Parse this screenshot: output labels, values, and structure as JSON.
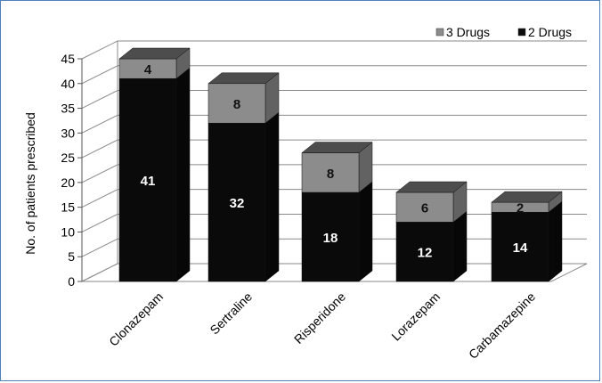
{
  "chart_data": {
    "type": "bar",
    "stacked": true,
    "three_d": true,
    "categories": [
      "Clonazepam",
      "Sertraline",
      "Risperidone",
      "Lorazepam",
      "Carbamazepine"
    ],
    "series": [
      {
        "name": "2 Drugs",
        "values": [
          41,
          32,
          18,
          12,
          14
        ],
        "color": "#0a0a0a"
      },
      {
        "name": "3 Drugs",
        "values": [
          4,
          8,
          8,
          6,
          2
        ],
        "color": "#8c8c8c"
      }
    ],
    "ylabel": "No. of patients prescribed",
    "xlabel": "",
    "ylim": [
      0,
      45
    ],
    "yticks": [
      "0",
      "5",
      "10",
      "15",
      "20",
      "25",
      "30",
      "35",
      "40",
      "45"
    ],
    "grid": true,
    "legend_position": "top-right",
    "legend_order": [
      "3 Drugs",
      "2 Drugs"
    ]
  }
}
